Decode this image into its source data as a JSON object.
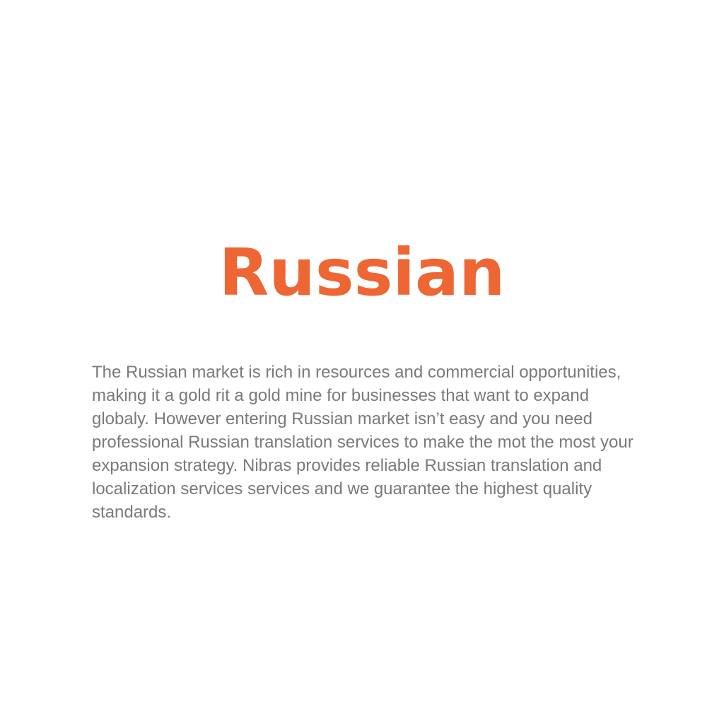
{
  "heading": "Russian",
  "heading_color": "#ee6633",
  "body_color": "#7a7a7a",
  "paragraph_lines": [
    "The Russian market is rich in resources and commercial opportunities,",
    "making it a gold rit a gold mine for businesses that want to expand",
    "globaly. However entering Russian market isn’t easy and you need",
    "professional Russian translation services to make the mot the most your",
    "expansion strategy. Nibras provides reliable Russian translation and",
    "localization services services and we guarantee the highest quality",
    "standards."
  ]
}
